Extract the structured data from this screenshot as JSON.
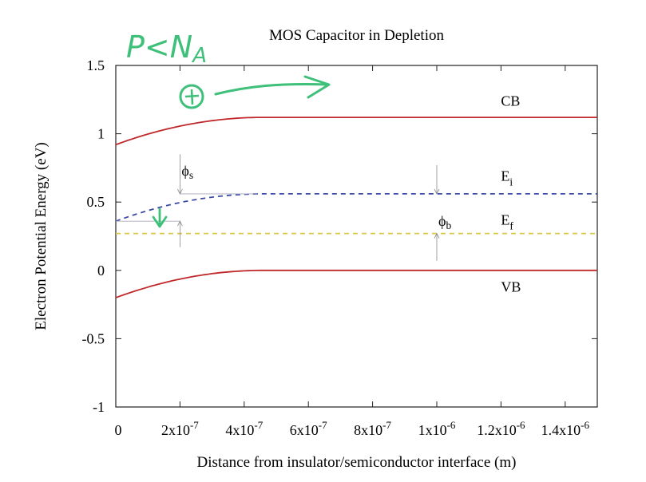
{
  "chart_data": {
    "type": "line",
    "title": "MOS Capacitor in Depletion",
    "xlabel": "Distance from insulator/semiconductor interface (m)",
    "ylabel": "Electron Potential Energy (eV)",
    "xlim": [
      0,
      1.5e-06
    ],
    "ylim": [
      -1,
      1.5
    ],
    "xticks": [
      {
        "value": 0,
        "label": "0"
      },
      {
        "value": 2e-07,
        "label": "2x10",
        "exp": "-7"
      },
      {
        "value": 4e-07,
        "label": "4x10",
        "exp": "-7"
      },
      {
        "value": 6e-07,
        "label": "6x10",
        "exp": "-7"
      },
      {
        "value": 8e-07,
        "label": "8x10",
        "exp": "-7"
      },
      {
        "value": 1e-06,
        "label": "1x10",
        "exp": "-6"
      },
      {
        "value": 1.2e-06,
        "label": "1.2x10",
        "exp": "-6"
      },
      {
        "value": 1.4e-06,
        "label": "1.4x10",
        "exp": "-6"
      }
    ],
    "yticks": [
      {
        "value": 1.5,
        "label": "1.5"
      },
      {
        "value": 1,
        "label": "1"
      },
      {
        "value": 0.5,
        "label": "0.5"
      },
      {
        "value": 0,
        "label": "0"
      },
      {
        "value": -0.5,
        "label": "-0.5"
      },
      {
        "value": -1,
        "label": "-1"
      }
    ],
    "depletion_width": 4.6e-07,
    "series": [
      {
        "label": "CB",
        "color": "#c0282a",
        "style": "solid",
        "y_surface": 0.92,
        "y_bulk": 1.12,
        "label_x": 1.2e-06,
        "label_y": 1.24
      },
      {
        "label": "E",
        "sub": "i",
        "color": "#3c4aa8",
        "style": "dashed",
        "y_surface": 0.36,
        "y_bulk": 0.56,
        "label_x": 1.2e-06,
        "label_y": 0.69
      },
      {
        "label": "E",
        "sub": "f",
        "color": "#d8c84a",
        "style": "dashed",
        "y_surface": 0.27,
        "y_bulk": 0.27,
        "label_x": 1.2e-06,
        "label_y": 0.37
      },
      {
        "label": "VB",
        "color": "#c0282a",
        "style": "solid",
        "y_surface": -0.2,
        "y_bulk": 0,
        "label_x": 1.2e-06,
        "label_y": -0.12
      }
    ],
    "annotations": [
      {
        "text": "ϕ",
        "sub": "s",
        "x": 2e-07,
        "y": 0.73
      },
      {
        "text": "ϕ",
        "sub": "b",
        "x": 1e-06,
        "y": 0.36
      }
    ],
    "handwriting": {
      "text": "P<N",
      "sub": "A",
      "color": "#3fc07a"
    },
    "grid": false
  }
}
